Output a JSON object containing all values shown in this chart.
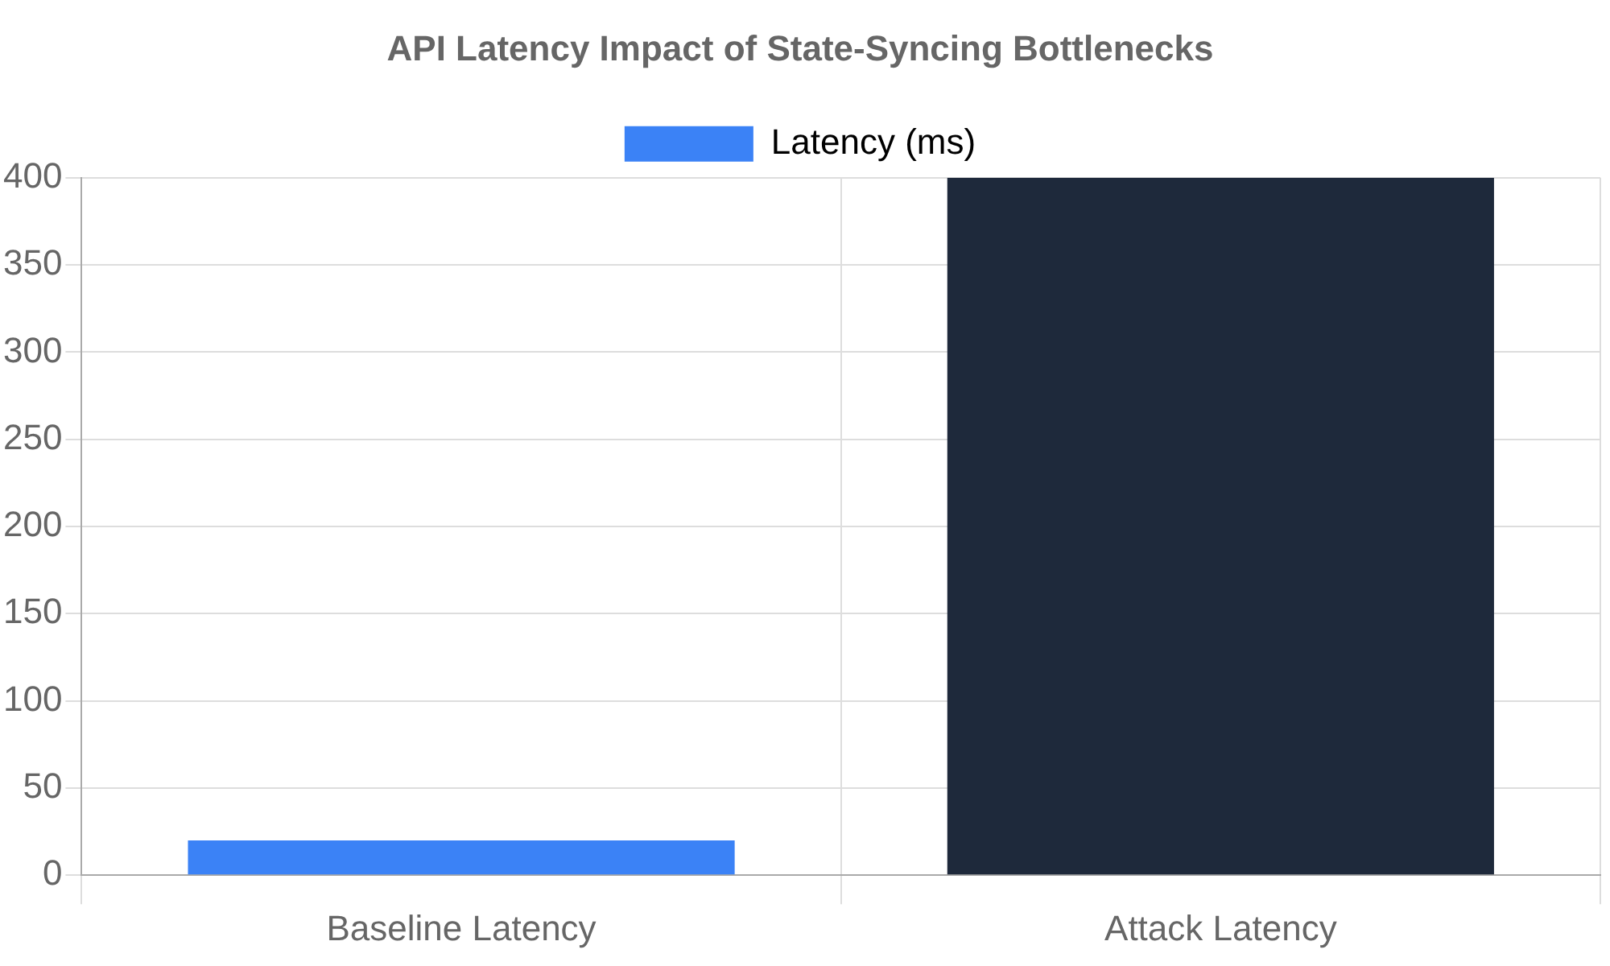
{
  "chart_data": {
    "type": "bar",
    "title": "API Latency Impact of State-Syncing Bottlenecks",
    "categories": [
      "Baseline Latency",
      "Attack Latency"
    ],
    "series": [
      {
        "name": "Latency (ms)",
        "colors": [
          "#3b82f6",
          "#1e293b"
        ],
        "color": "#3b82f6",
        "values": [
          20,
          400
        ]
      }
    ],
    "ylim": [
      0,
      400
    ],
    "yticks": [
      0,
      50,
      100,
      150,
      200,
      250,
      300,
      350,
      400
    ],
    "grid": true,
    "legend": "top"
  }
}
